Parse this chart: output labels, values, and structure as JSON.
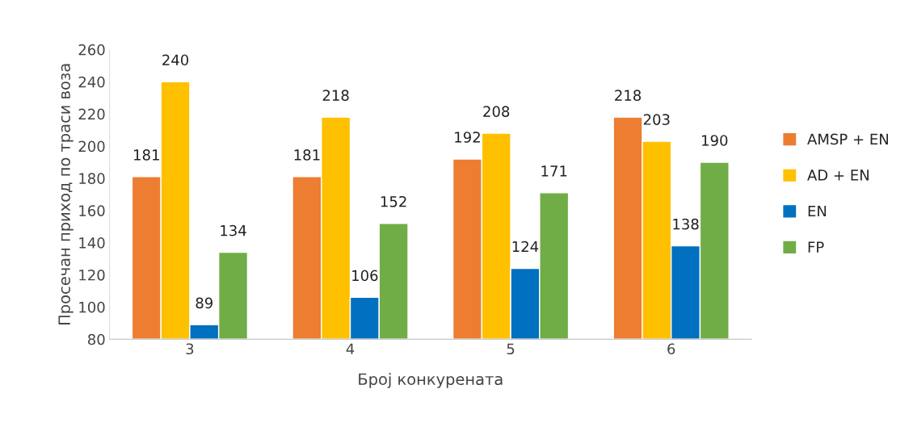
{
  "chart_data": {
    "type": "bar",
    "xlabel": "Број конкурената",
    "ylabel": "Просечан приход по траси воза",
    "categories": [
      "3",
      "4",
      "5",
      "6"
    ],
    "series": [
      {
        "name": "AMSP + EN",
        "color": "#ed7d31",
        "values": [
          181,
          181,
          192,
          218
        ]
      },
      {
        "name": "AD + EN",
        "color": "#ffc000",
        "values": [
          240,
          218,
          208,
          203
        ]
      },
      {
        "name": "EN",
        "color": "#0070c0",
        "values": [
          89,
          106,
          124,
          138
        ]
      },
      {
        "name": "FP",
        "color": "#70ad47",
        "values": [
          134,
          152,
          171,
          190
        ]
      }
    ],
    "ylim": [
      80,
      260
    ],
    "yticks": [
      80,
      100,
      120,
      140,
      160,
      180,
      200,
      220,
      240,
      260
    ],
    "data_labels": true,
    "legend": "right",
    "grid": false
  }
}
